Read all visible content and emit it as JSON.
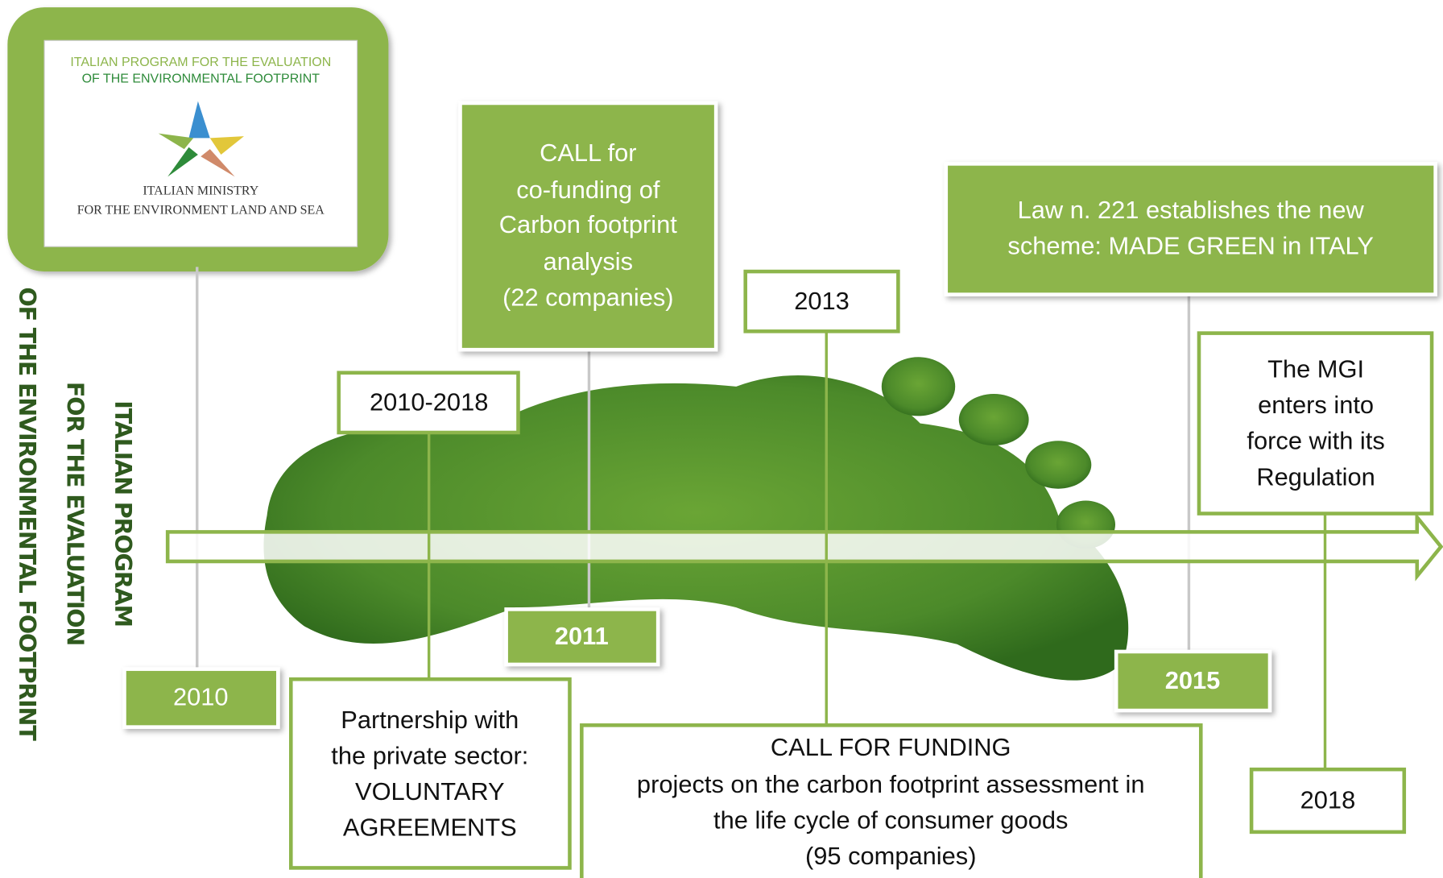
{
  "logo": {
    "line1": "ITALIAN PROGRAM FOR THE EVALUATION",
    "line2": "OF THE ENVIRONMENTAL FOOTPRINT",
    "ministry1": "ITALIAN MINISTRY",
    "ministry2": "FOR THE ENVIRONMENT LAND AND SEA"
  },
  "side_title": [
    "ITALIAN PROGRAM",
    "FOR THE EVALUATION",
    "OF THE ENVIRONMENTAL FOOTPRINT"
  ],
  "years": [
    "2010",
    "2010-2018",
    "2011",
    "2013",
    "2015",
    "2018"
  ],
  "events": [
    {
      "lines": [
        "Partnership with",
        "the private sector:",
        "VOLUNTARY",
        "AGREEMENTS"
      ]
    },
    {
      "lines": [
        "CALL for",
        "co-funding of",
        "Carbon footprint",
        "analysis",
        "(22 companies)"
      ]
    },
    {
      "lines": [
        "CALL FOR FUNDING",
        "projects on the carbon footprint assessment in",
        "the life cycle of consumer  goods",
        "(95 companies)"
      ]
    },
    {
      "lines": [
        "Law n. 221 establishes the new",
        "scheme: MADE GREEN in ITALY"
      ]
    },
    {
      "lines": [
        "The MGI",
        "enters into",
        "force with its",
        "Regulation"
      ]
    }
  ]
}
